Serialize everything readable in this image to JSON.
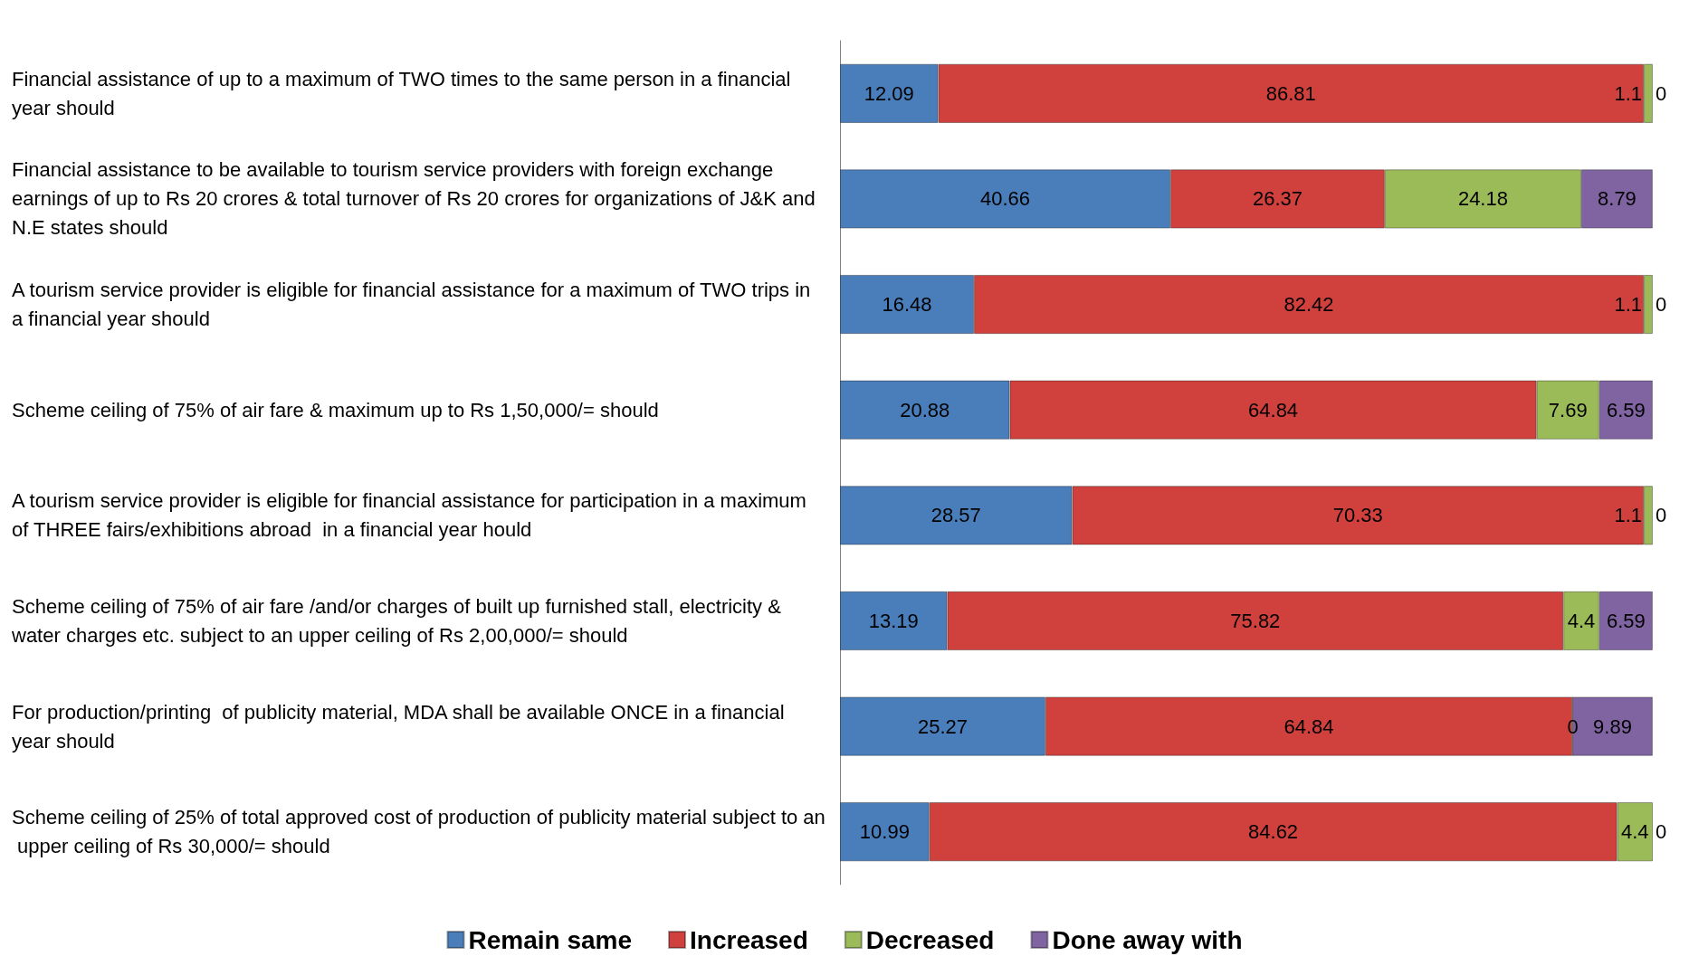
{
  "chart_data": {
    "type": "bar",
    "orientation": "horizontal",
    "stacked": true,
    "data_labels": true,
    "legend": "bottom",
    "grid": false,
    "tick_labels": "y",
    "categories": [
      "Financial assistance of up to a maximum of TWO times to the same person in a financial year should",
      "Financial assistance to be available to tourism service providers with foreign exchange earnings of up to Rs 20 crores & total turnover of Rs 20 crores for organizations of J&K and N.E states should",
      "A tourism service provider is eligible for financial assistance for a maximum of TWO trips in a financial year should",
      "Scheme ceiling of 75% of air fare & maximum up to Rs 1,50,000/= should",
      "A tourism service provider is eligible for financial assistance for participation in a maximum of THREE fairs/exhibitions abroad  in a financial year hould",
      "Scheme ceiling of 75% of air fare /and/or charges of built up furnished stall, electricity & water charges etc. subject to an upper ceiling of Rs 2,00,000/= should",
      "For production/printing  of publicity material, MDA shall be available ONCE in a financial year should",
      "Scheme ceiling of 25% of total approved cost of production of publicity material subject to an upper ceiling of Rs 30,000/= should"
    ],
    "series": [
      {
        "name": "Remain same",
        "color": "#4a7ebb",
        "values": [
          12.09,
          40.66,
          16.48,
          20.88,
          28.57,
          13.19,
          25.27,
          10.99
        ]
      },
      {
        "name": "Increased",
        "color": "#d0413d",
        "values": [
          86.81,
          26.37,
          82.42,
          64.84,
          70.33,
          75.82,
          64.84,
          84.62
        ]
      },
      {
        "name": "Decreased",
        "color": "#9bbb59",
        "values": [
          1.1,
          24.18,
          1.1,
          7.69,
          1.1,
          4.4,
          0,
          4.4
        ]
      },
      {
        "name": "Done away with",
        "color": "#8064a2",
        "values": [
          0,
          8.79,
          0,
          6.59,
          0,
          6.59,
          9.89,
          0
        ]
      }
    ]
  }
}
